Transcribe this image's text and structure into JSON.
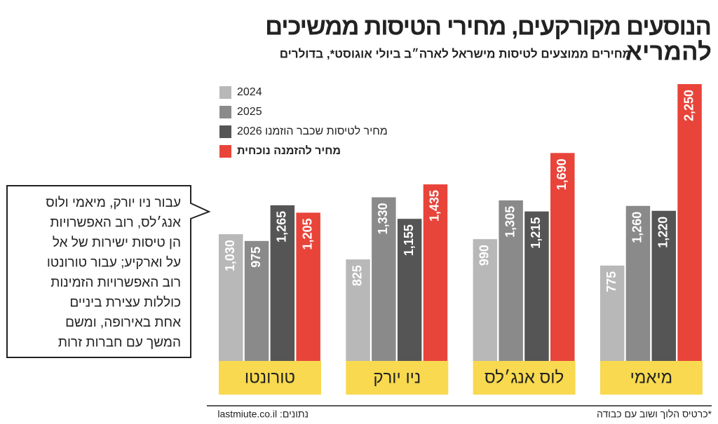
{
  "chart_data": {
    "type": "bar",
    "title": [
      "הנוסעים מקורקעים, מחירי הטיסות ממשיכים",
      "להמריא"
    ],
    "subtitle": "מחירים ממוצעים לטיסות מישראל לארה״ב ביולי אוגוסט*, בדולרים",
    "categories": [
      "טורונטו",
      "ניו יורק",
      "לוס אנג׳לס",
      "מיאמי"
    ],
    "series": [
      {
        "name": "2024",
        "color": "#b8b8b8",
        "values": [
          1030,
          825,
          990,
          775
        ],
        "value_labels": [
          "1,030",
          "825",
          "990",
          "775"
        ]
      },
      {
        "name": "2025",
        "color": "#8a8a8a",
        "values": [
          975,
          1330,
          1305,
          1260
        ],
        "value_labels": [
          "975",
          "1,330",
          "1,305",
          "1,260"
        ]
      },
      {
        "name": "מחיר לטיסות שכבר הוזמנו 2026",
        "color": "#555555",
        "values": [
          1265,
          1155,
          1215,
          1220
        ],
        "value_labels": [
          "1,265",
          "1,155",
          "1,215",
          "1,220"
        ]
      },
      {
        "name": "מחיר להזמנה נוכחית",
        "color": "#e8443a",
        "values": [
          1205,
          1435,
          1690,
          2250
        ],
        "value_labels": [
          "1,205",
          "1,435",
          "1,690",
          "2,250"
        ]
      }
    ],
    "annotation": [
      "עבור ניו יורק, מיאמי ולוס",
      "אנג׳לס, רוב האפשרויות",
      "הן טיסות ישירות של אל",
      "על וארקיע; עבור טורונטו",
      "רוב האפשרויות הזמינות",
      "כוללות עצירת ביניים",
      "אחת באירופה, ומשם",
      "המשך עם חברות זרות"
    ],
    "source": "נתונים: lastmiute.co.il",
    "note": "*כרטיס הלוך ושוב עם כבודה"
  }
}
